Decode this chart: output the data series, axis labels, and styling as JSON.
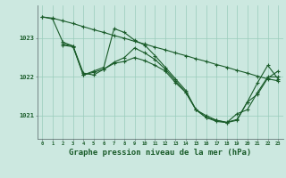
{
  "background_color": "#cce8e0",
  "line_color": "#1a5c2a",
  "grid_color": "#99ccbb",
  "title": "Graphe pression niveau de la mer (hPa)",
  "title_fontsize": 6.5,
  "yticks": [
    1021,
    1022,
    1023
  ],
  "ylim": [
    1020.4,
    1023.85
  ],
  "xlim": [
    -0.5,
    23.5
  ],
  "series": [
    {
      "x": [
        0,
        1,
        2,
        3,
        4,
        5,
        6,
        7,
        8,
        9,
        10,
        11,
        12,
        13,
        14,
        15,
        16,
        17,
        18,
        19,
        20,
        21,
        22,
        23
      ],
      "y": [
        1023.55,
        1023.52,
        1023.45,
        1023.38,
        1023.3,
        1023.22,
        1023.15,
        1023.07,
        1023.0,
        1022.92,
        1022.85,
        1022.77,
        1022.7,
        1022.62,
        1022.55,
        1022.47,
        1022.4,
        1022.32,
        1022.25,
        1022.17,
        1022.1,
        1022.02,
        1021.95,
        1021.9
      ]
    },
    {
      "x": [
        0,
        1,
        2,
        3,
        4,
        5,
        6,
        7,
        8,
        9,
        10,
        11,
        12,
        13,
        14,
        15,
        16,
        17,
        18,
        19,
        20,
        21,
        22,
        23
      ],
      "y": [
        1023.55,
        1023.5,
        1022.9,
        1022.8,
        1022.1,
        1022.05,
        1022.2,
        1022.35,
        1022.4,
        1022.5,
        1022.42,
        1022.3,
        1022.15,
        1021.85,
        1021.6,
        1021.15,
        1021.0,
        1020.88,
        1020.82,
        1021.05,
        1021.15,
        1021.6,
        1022.0,
        1022.0
      ]
    },
    {
      "x": [
        2,
        3,
        4,
        5,
        6,
        7,
        8,
        9,
        10,
        11,
        12,
        13,
        14,
        15,
        16,
        17,
        18,
        19,
        20,
        21,
        22,
        23
      ],
      "y": [
        1022.85,
        1022.8,
        1022.05,
        1022.15,
        1022.25,
        1023.25,
        1023.15,
        1022.95,
        1022.82,
        1022.55,
        1022.25,
        1021.95,
        1021.65,
        1021.15,
        1020.95,
        1020.88,
        1020.83,
        1020.9,
        1021.35,
        1021.85,
        1022.3,
        1021.95
      ]
    },
    {
      "x": [
        2,
        3,
        4,
        5,
        6,
        7,
        8,
        9,
        10,
        11,
        12,
        13,
        14,
        15,
        16,
        17,
        18,
        19,
        20,
        21,
        22,
        23
      ],
      "y": [
        1022.82,
        1022.78,
        1022.05,
        1022.12,
        1022.2,
        1022.38,
        1022.5,
        1022.75,
        1022.62,
        1022.45,
        1022.2,
        1021.9,
        1021.6,
        1021.15,
        1020.95,
        1020.85,
        1020.82,
        1020.88,
        1021.35,
        1021.55,
        1021.97,
        1022.15
      ]
    }
  ]
}
